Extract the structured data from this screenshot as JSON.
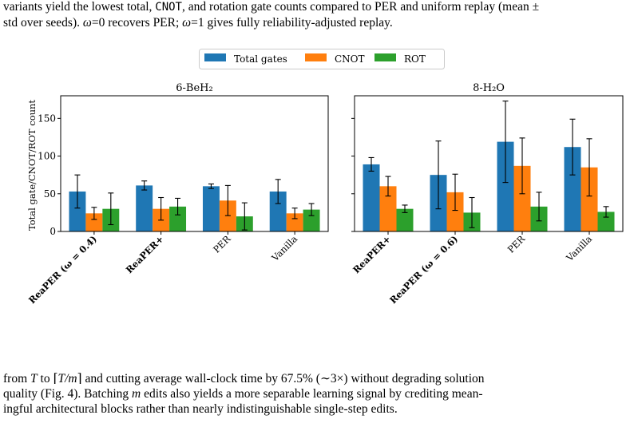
{
  "caption_top": {
    "line1": {
      "a": "variants yield the lowest total, ",
      "code": "CNOT",
      "b": ", and rotation gate counts compared to PER and uniform replay (mean ±"
    },
    "line2": {
      "a": "std over seeds). ",
      "w1": "ω",
      "b": "=0 recovers PER; ",
      "w2": "ω",
      "c": "=1 gives fully reliability-adjusted replay."
    }
  },
  "legend": [
    {
      "label": "Total gates",
      "color": "#1f77b4"
    },
    {
      "label": "CNOT",
      "color": "#ff7f0e"
    },
    {
      "label": "ROT",
      "color": "#2ca02c"
    }
  ],
  "colors": {
    "errorbar": "#000000",
    "axis": "#000000"
  },
  "chart_data": [
    {
      "type": "bar",
      "title": "6-BeH₂",
      "ylabel": "Total gate/CNOT/ROT count",
      "ylim": [
        0,
        180
      ],
      "yticks": [
        0,
        50,
        100,
        150
      ],
      "categories": [
        "ReaPER (ω = 0.4)",
        "ReaPER+",
        "PER",
        "Vanilla"
      ],
      "bold_categories": [
        true,
        true,
        false,
        false
      ],
      "series": [
        {
          "name": "Total gates",
          "values": [
            53,
            61,
            60,
            53
          ],
          "errors": [
            22,
            6,
            3,
            16
          ]
        },
        {
          "name": "CNOT",
          "values": [
            24,
            30,
            41,
            24
          ],
          "errors": [
            8,
            15,
            20,
            7
          ]
        },
        {
          "name": "ROT",
          "values": [
            30,
            33,
            20,
            29
          ],
          "errors": [
            21,
            11,
            18,
            8
          ]
        }
      ]
    },
    {
      "type": "bar",
      "title": "8-H₂O",
      "ylabel": "",
      "ylim": [
        0,
        180
      ],
      "yticks": [
        0,
        50,
        100,
        150
      ],
      "categories": [
        "ReaPER+",
        "ReaPER (ω = 0.6)",
        "PER",
        "Vanilla"
      ],
      "bold_categories": [
        true,
        true,
        false,
        false
      ],
      "series": [
        {
          "name": "Total gates",
          "values": [
            89,
            75,
            119,
            112
          ],
          "errors": [
            9,
            45,
            54,
            37
          ]
        },
        {
          "name": "CNOT",
          "values": [
            60,
            52,
            87,
            85
          ],
          "errors": [
            13,
            24,
            37,
            38
          ]
        },
        {
          "name": "ROT",
          "values": [
            30,
            25,
            33,
            26
          ],
          "errors": [
            5,
            20,
            19,
            7
          ]
        }
      ]
    }
  ],
  "caption_bottom": {
    "line1": {
      "a": "from ",
      "T1": "T",
      "b": " to ⌈",
      "T2": "T/m",
      "c": "⌉ and cutting average wall-clock time by 67.5% (∼3×) without degrading solution"
    },
    "line2": {
      "a": "quality (Fig. 4). Batching ",
      "m": "m",
      "b": " edits also yields a more separable learning signal by crediting mean-"
    },
    "line3": "ingful architectural blocks rather than nearly indistinguishable single-step edits."
  }
}
